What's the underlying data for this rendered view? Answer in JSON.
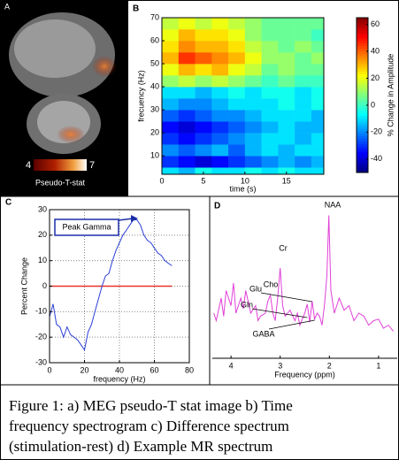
{
  "panel_a": {
    "label": "A",
    "colorbar": {
      "ticks": [
        4,
        7
      ],
      "label": "Pseudo-T-stat"
    }
  },
  "chart_data": [
    {
      "type": "heatmap",
      "label": "B",
      "xlabel": "time (s)",
      "ylabel": "frecuency (Hz)",
      "xlim": [
        0,
        19.5
      ],
      "xticks": [
        0,
        5,
        10,
        15
      ],
      "ylim": [
        2,
        70
      ],
      "yticks": [
        10,
        20,
        30,
        40,
        50,
        60,
        70
      ],
      "x_edges": [
        0,
        2,
        4,
        6,
        8,
        10,
        12,
        14,
        16,
        18,
        19.5
      ],
      "y_edges": [
        2,
        5,
        10,
        15,
        20,
        25,
        30,
        35,
        40,
        45,
        50,
        55,
        60,
        65,
        70
      ],
      "z": [
        [
          -10,
          -15,
          -5,
          -10,
          -10,
          -5,
          -10,
          -5,
          -10,
          -10
        ],
        [
          -30,
          -35,
          -40,
          -35,
          -30,
          -25,
          -20,
          -15,
          -20,
          -15
        ],
        [
          -20,
          -25,
          -20,
          -15,
          -25,
          -15,
          -10,
          -15,
          -10,
          -10
        ],
        [
          -30,
          -35,
          -30,
          -25,
          -20,
          -15,
          -10,
          -10,
          -15,
          -10
        ],
        [
          -35,
          -40,
          -35,
          -30,
          -25,
          -20,
          -15,
          -10,
          -15,
          -15
        ],
        [
          -25,
          -30,
          -25,
          -20,
          -20,
          -15,
          -10,
          -10,
          -10,
          -15
        ],
        [
          -15,
          -20,
          -20,
          -15,
          -10,
          -10,
          -10,
          -5,
          -10,
          -5
        ],
        [
          -10,
          -10,
          -15,
          -10,
          -5,
          -10,
          -5,
          -5,
          -10,
          -5
        ],
        [
          10,
          15,
          10,
          15,
          10,
          5,
          0,
          5,
          0,
          0
        ],
        [
          20,
          30,
          25,
          30,
          20,
          15,
          5,
          10,
          5,
          5
        ],
        [
          30,
          45,
          40,
          35,
          30,
          20,
          10,
          10,
          5,
          10
        ],
        [
          25,
          35,
          30,
          30,
          25,
          15,
          10,
          5,
          10,
          5
        ],
        [
          20,
          30,
          25,
          25,
          20,
          10,
          5,
          5,
          5,
          0
        ],
        [
          15,
          20,
          15,
          20,
          15,
          10,
          5,
          5,
          5,
          5
        ]
      ],
      "colormap": "jet",
      "clim": [
        -50,
        65
      ],
      "cticks": [
        -40,
        -20,
        0,
        20,
        40,
        60
      ],
      "clabel": "% Change in Amplitude"
    },
    {
      "type": "line",
      "label": "C",
      "xlabel": "frequency (Hz)",
      "ylabel": "Percent Change",
      "xlim": [
        0,
        80
      ],
      "xticks": [
        0,
        20,
        40,
        60,
        80
      ],
      "ylim": [
        -30,
        30
      ],
      "yticks": [
        -30,
        -20,
        -10,
        0,
        10,
        20,
        30
      ],
      "grid": true,
      "x": [
        0,
        2,
        4,
        6,
        8,
        10,
        12,
        14,
        16,
        18,
        20,
        22,
        24,
        26,
        28,
        30,
        32,
        34,
        36,
        38,
        40,
        42,
        44,
        46,
        48,
        50,
        52,
        54,
        56,
        58,
        60,
        62,
        64,
        66,
        68,
        70
      ],
      "series": [
        {
          "color": "#2a3fd6",
          "values": [
            -12,
            -7,
            -15,
            -16,
            -20,
            -16,
            -19,
            -20,
            -21,
            -23,
            -25,
            -18,
            -15,
            -10,
            -5,
            0,
            4,
            5,
            10,
            14,
            17,
            20,
            22,
            24,
            26,
            26,
            24,
            20,
            18,
            17,
            15,
            13,
            12,
            10,
            9,
            8
          ]
        }
      ],
      "hline": {
        "value": 0,
        "color": "#e8332a"
      },
      "annotation": "Peak Gamma"
    },
    {
      "type": "line",
      "label": "D",
      "xlabel": "Frequency (ppm)",
      "xlim": [
        4.38,
        0.62
      ],
      "xticks": [
        4,
        3,
        2,
        1
      ],
      "ylim": [
        0,
        100
      ],
      "x": [
        4.35,
        4.3,
        4.2,
        4.15,
        4.1,
        4.0,
        3.95,
        3.9,
        3.8,
        3.75,
        3.7,
        3.6,
        3.5,
        3.45,
        3.4,
        3.3,
        3.25,
        3.2,
        3.15,
        3.1,
        3.05,
        3.0,
        2.95,
        2.9,
        2.8,
        2.7,
        2.65,
        2.6,
        2.5,
        2.45,
        2.4,
        2.35,
        2.3,
        2.25,
        2.2,
        2.15,
        2.1,
        2.05,
        2.01,
        1.97,
        1.9,
        1.8,
        1.7,
        1.6,
        1.5,
        1.4,
        1.3,
        1.2,
        1.1,
        1.0,
        0.9,
        0.8,
        0.7
      ],
      "series": [
        {
          "color": "#e040d8",
          "values": [
            30,
            25,
            40,
            28,
            45,
            35,
            50,
            30,
            40,
            33,
            45,
            30,
            35,
            25,
            28,
            30,
            38,
            42,
            30,
            25,
            40,
            60,
            35,
            28,
            32,
            25,
            30,
            22,
            30,
            36,
            24,
            38,
            26,
            30,
            28,
            22,
            35,
            55,
            95,
            45,
            30,
            40,
            32,
            35,
            25,
            30,
            28,
            22,
            25,
            26,
            20,
            22,
            18
          ]
        }
      ],
      "annotations": [
        "NAA",
        "Cr",
        "Cho",
        "Glu",
        "Gln",
        "GABA"
      ]
    }
  ],
  "caption": [
    "Figure 1: a) MEG pseudo-T stat image b) Time",
    "frequency spectrogram c) Difference spectrum",
    "(stimulation-rest) d) Example MR spectrum"
  ]
}
